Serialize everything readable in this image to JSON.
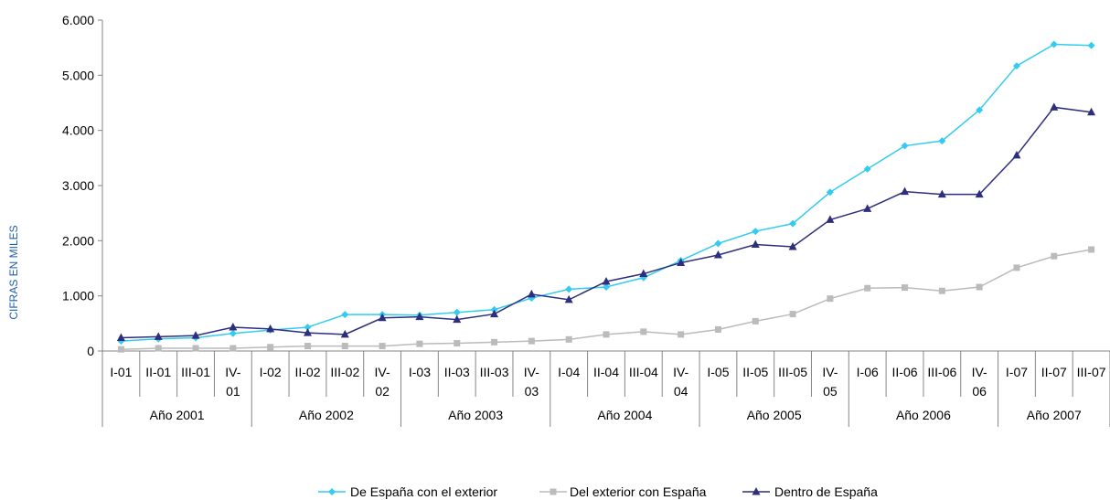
{
  "chart_data": {
    "type": "line",
    "ylabel": "CIFRAS EN MILES",
    "ylim": [
      0,
      6000
    ],
    "yticks": [
      "0",
      "1.000",
      "2.000",
      "3.000",
      "4.000",
      "5.000",
      "6.000"
    ],
    "categories": [
      [
        "I-01"
      ],
      [
        "II-01"
      ],
      [
        "III-01"
      ],
      [
        "IV-",
        "01"
      ],
      [
        "I-02"
      ],
      [
        "II-02"
      ],
      [
        "III-02"
      ],
      [
        "IV-",
        "02"
      ],
      [
        "I-03"
      ],
      [
        "II-03"
      ],
      [
        "III-03"
      ],
      [
        "IV-",
        "03"
      ],
      [
        "I-04"
      ],
      [
        "II-04"
      ],
      [
        "III-04"
      ],
      [
        "IV-",
        "04"
      ],
      [
        "I-05"
      ],
      [
        "II-05"
      ],
      [
        "III-05"
      ],
      [
        "IV-",
        "05"
      ],
      [
        "I-06"
      ],
      [
        "II-06"
      ],
      [
        "III-06"
      ],
      [
        "IV-",
        "06"
      ],
      [
        "I-07"
      ],
      [
        "II-07"
      ],
      [
        "III-07"
      ]
    ],
    "groups": [
      {
        "label": "Año 2001",
        "count": 4
      },
      {
        "label": "Año 2002",
        "count": 4
      },
      {
        "label": "Año 2003",
        "count": 4
      },
      {
        "label": "Año 2004",
        "count": 4
      },
      {
        "label": "Año 2005",
        "count": 4
      },
      {
        "label": "Año 2006",
        "count": 4
      },
      {
        "label": "Año 2007",
        "count": 3
      }
    ],
    "legend_position": "bottom",
    "series": [
      {
        "name": "De España con el exterior",
        "color": "#33ccf0",
        "marker": "diamond",
        "values": [
          180,
          220,
          240,
          320,
          380,
          430,
          660,
          660,
          650,
          700,
          750,
          960,
          1120,
          1160,
          1330,
          1640,
          1950,
          2170,
          2310,
          2880,
          3300,
          3720,
          3810,
          4370,
          5170,
          5560,
          5540
        ]
      },
      {
        "name": "Del exterior con España",
        "color": "#bbbbbb",
        "marker": "square",
        "values": [
          30,
          50,
          50,
          50,
          70,
          90,
          90,
          90,
          130,
          140,
          160,
          180,
          210,
          300,
          350,
          300,
          390,
          540,
          670,
          950,
          1140,
          1150,
          1090,
          1160,
          1510,
          1720,
          1840
        ]
      },
      {
        "name": "Dentro de España",
        "color": "#2e2e7e",
        "marker": "triangle",
        "values": [
          240,
          260,
          280,
          430,
          400,
          330,
          300,
          600,
          620,
          570,
          670,
          1030,
          930,
          1260,
          1400,
          1600,
          1740,
          1930,
          1890,
          2380,
          2580,
          2890,
          2840,
          2840,
          3550,
          4420,
          4330
        ]
      }
    ]
  }
}
